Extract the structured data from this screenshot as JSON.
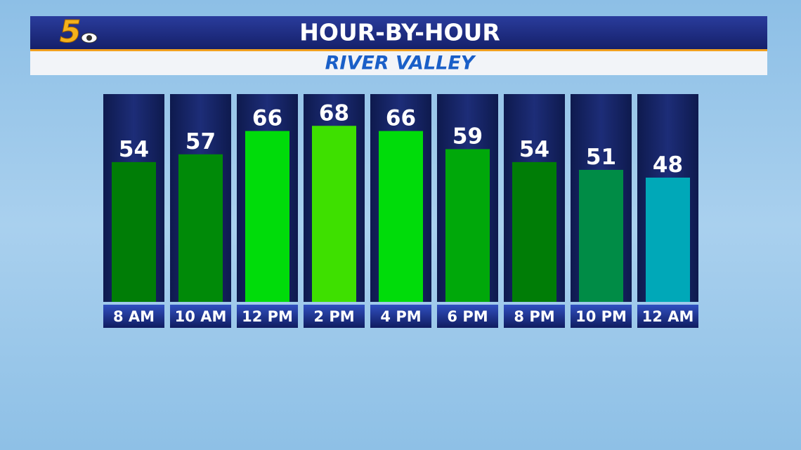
{
  "chart_data": {
    "type": "bar",
    "logo": "5",
    "title": "HOUR-BY-HOUR",
    "subtitle": "RIVER VALLEY",
    "categories": [
      "8 AM",
      "10 AM",
      "12 PM",
      "2 PM",
      "4 PM",
      "6 PM",
      "8 PM",
      "10 PM",
      "12 AM"
    ],
    "values": [
      54,
      57,
      66,
      68,
      66,
      59,
      54,
      51,
      48
    ],
    "colors": [
      "#007d06",
      "#008a08",
      "#00dc0a",
      "#3ee000",
      "#00dc0a",
      "#00a80a",
      "#007d06",
      "#008c46",
      "#00a8b8"
    ],
    "ylim": [
      0,
      80
    ]
  }
}
